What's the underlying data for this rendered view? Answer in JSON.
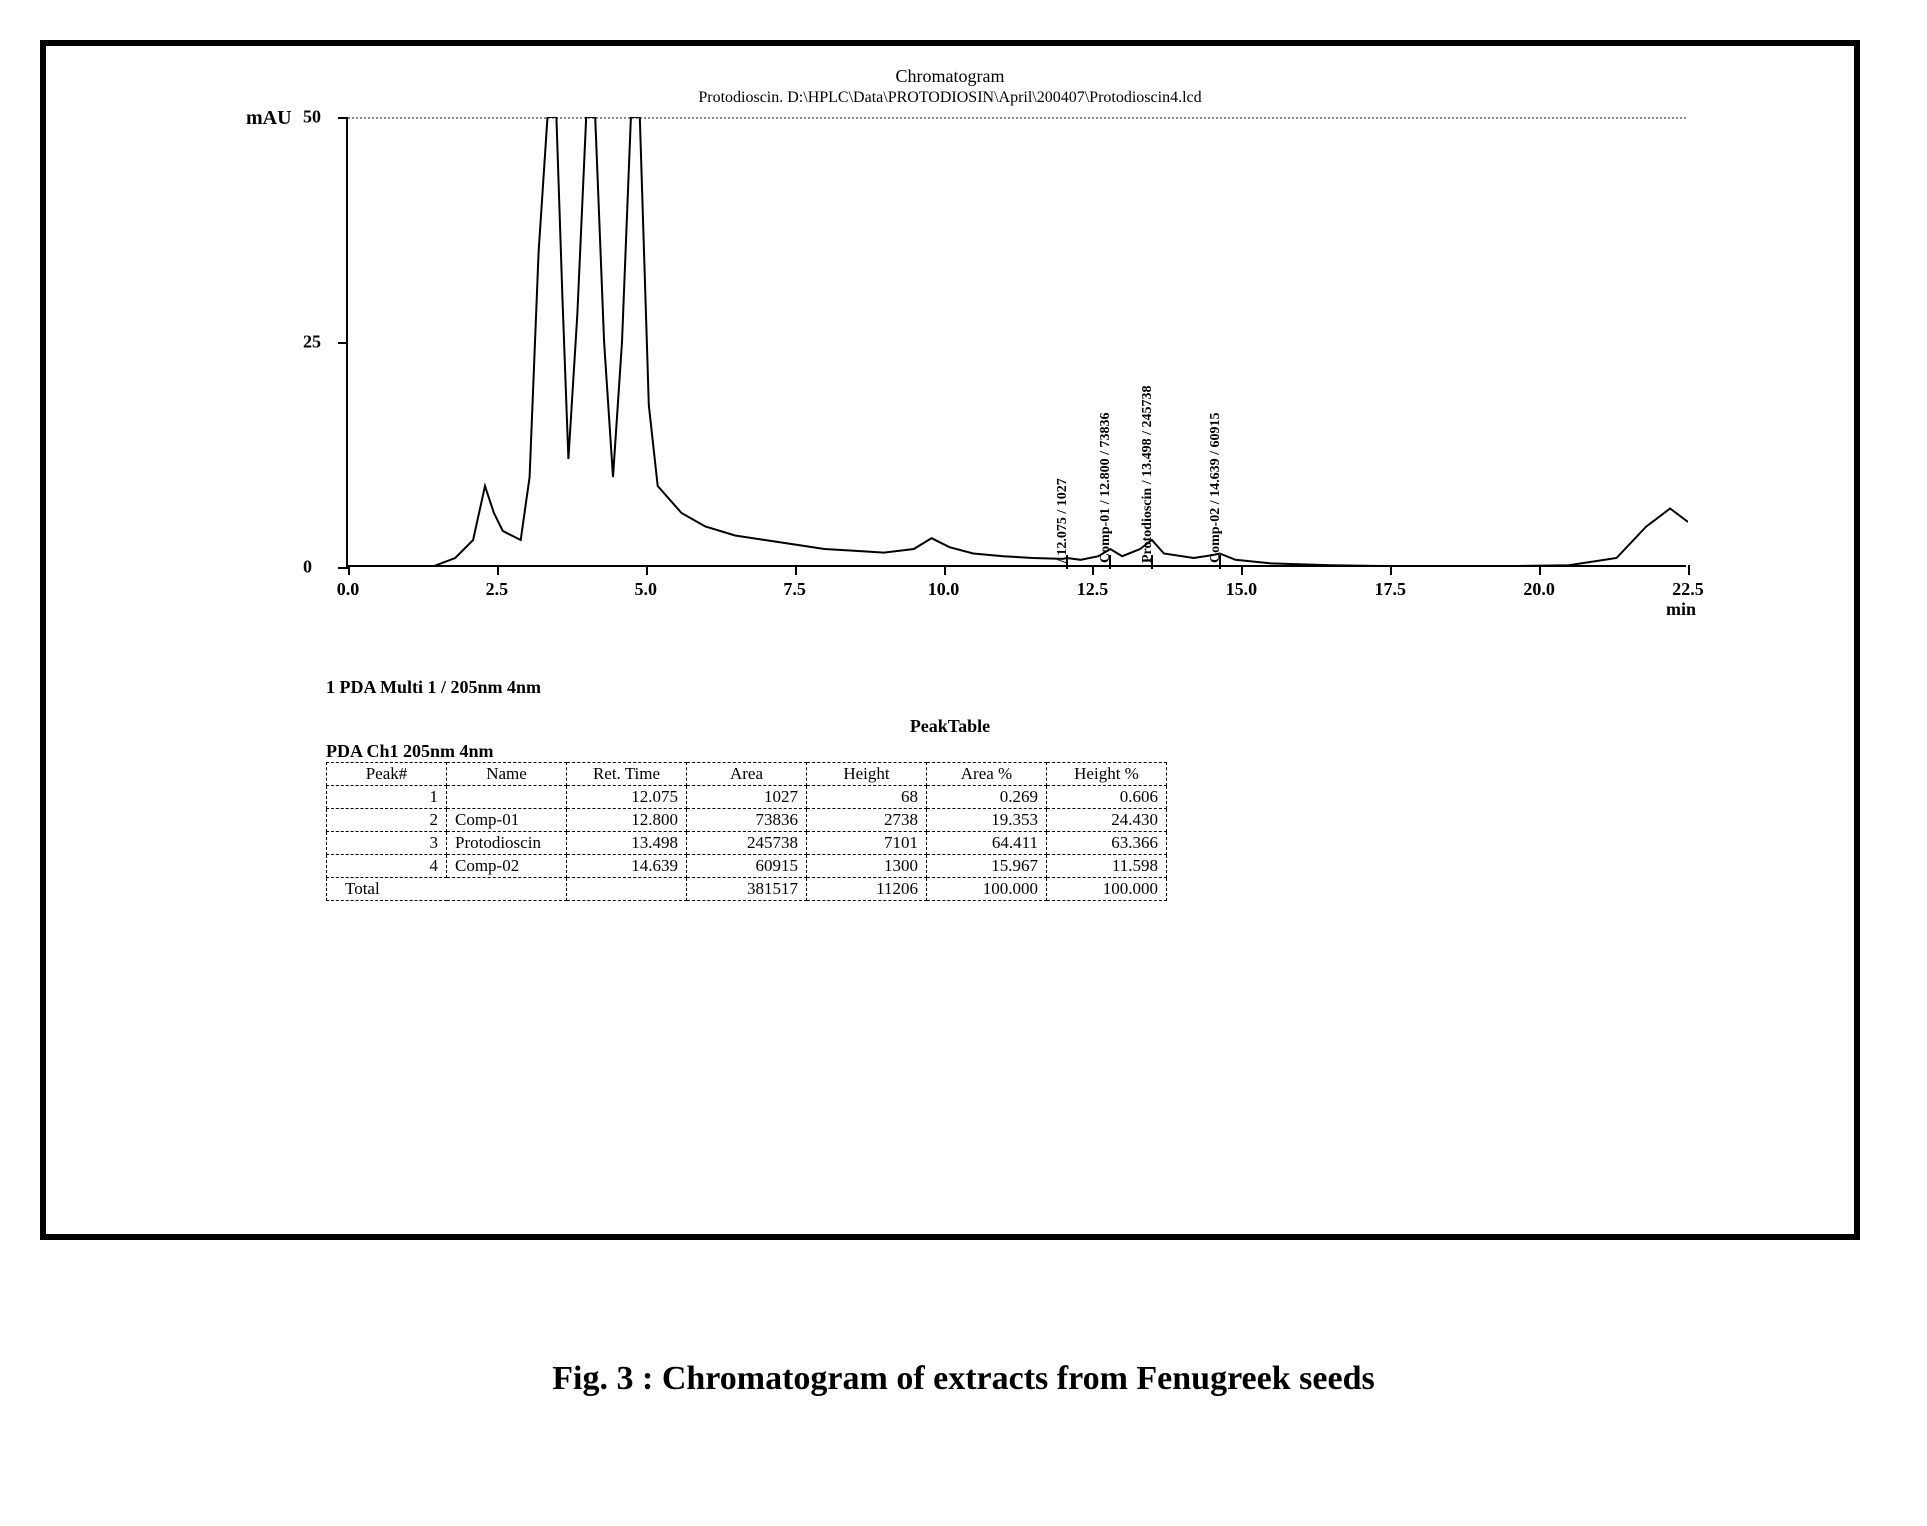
{
  "header": {
    "title": "Chromatogram",
    "subtitle": "Protodioscin. D:\\HPLC\\Data\\PROTODIOSIN\\April\\200407\\Protodioscin4.lcd"
  },
  "chart": {
    "type": "line",
    "y_label": "mAU",
    "x_unit": "min",
    "ylim": [
      0,
      50
    ],
    "xlim": [
      0,
      22.5
    ],
    "yticks": [
      0,
      25,
      50
    ],
    "xticks": [
      0.0,
      2.5,
      5.0,
      7.5,
      10.0,
      12.5,
      15.0,
      17.5,
      20.0,
      22.5
    ],
    "xtick_labels": [
      "0.0",
      "2.5",
      "5.0",
      "7.5",
      "10.0",
      "12.5",
      "15.0",
      "17.5",
      "20.0",
      "22.5"
    ],
    "line_color": "#000000",
    "line_width": 2,
    "background_color": "#ffffff",
    "grid_color": "#888888",
    "font_family": "Times New Roman",
    "tick_fontsize": 18,
    "trace": [
      [
        0.0,
        -1
      ],
      [
        0.3,
        -1
      ],
      [
        0.6,
        0
      ],
      [
        1.0,
        0
      ],
      [
        1.4,
        0
      ],
      [
        1.8,
        1
      ],
      [
        2.1,
        3
      ],
      [
        2.3,
        9
      ],
      [
        2.45,
        6
      ],
      [
        2.6,
        4
      ],
      [
        2.9,
        3
      ],
      [
        3.05,
        10
      ],
      [
        3.2,
        35
      ],
      [
        3.35,
        80
      ],
      [
        3.5,
        55
      ],
      [
        3.6,
        30
      ],
      [
        3.7,
        12
      ],
      [
        3.85,
        28
      ],
      [
        4.0,
        80
      ],
      [
        4.15,
        78
      ],
      [
        4.3,
        25
      ],
      [
        4.45,
        10
      ],
      [
        4.6,
        25
      ],
      [
        4.75,
        80
      ],
      [
        4.9,
        60
      ],
      [
        5.05,
        18
      ],
      [
        5.2,
        9
      ],
      [
        5.6,
        6
      ],
      [
        6.0,
        4.5
      ],
      [
        6.5,
        3.5
      ],
      [
        7.0,
        3
      ],
      [
        7.5,
        2.5
      ],
      [
        8.0,
        2
      ],
      [
        8.5,
        1.8
      ],
      [
        9.0,
        1.6
      ],
      [
        9.5,
        2
      ],
      [
        9.8,
        3.2
      ],
      [
        10.1,
        2.2
      ],
      [
        10.5,
        1.5
      ],
      [
        11.0,
        1.2
      ],
      [
        11.5,
        1
      ],
      [
        12.0,
        0.9
      ],
      [
        12.075,
        1.0
      ],
      [
        12.3,
        0.8
      ],
      [
        12.6,
        1.2
      ],
      [
        12.8,
        2.0
      ],
      [
        13.0,
        1.2
      ],
      [
        13.3,
        2.0
      ],
      [
        13.498,
        3.0
      ],
      [
        13.7,
        1.5
      ],
      [
        14.2,
        1.0
      ],
      [
        14.5,
        1.3
      ],
      [
        14.639,
        1.5
      ],
      [
        14.9,
        0.8
      ],
      [
        15.5,
        0.4
      ],
      [
        16.5,
        0.2
      ],
      [
        17.5,
        0.1
      ],
      [
        18.5,
        0.1
      ],
      [
        19.5,
        0.1
      ],
      [
        20.5,
        0.2
      ],
      [
        21.3,
        1.0
      ],
      [
        21.8,
        4.5
      ],
      [
        22.2,
        6.5
      ],
      [
        22.5,
        5.0
      ]
    ],
    "annotations": [
      {
        "x": 12.075,
        "text": "/ 12.075 / 1027"
      },
      {
        "x": 12.8,
        "text": "Comp-01 / 12.800 / 73836"
      },
      {
        "x": 13.498,
        "text": "Protodioscin / 13.498 / 245738"
      },
      {
        "x": 14.639,
        "text": "Comp-02 / 14.639 / 60915"
      }
    ]
  },
  "channel_label": "1   PDA Multi 1 / 205nm 4nm",
  "peaktable": {
    "title": "PeakTable",
    "channel": "PDA Ch1 205nm 4nm",
    "columns": [
      "Peak#",
      "Name",
      "Ret. Time",
      "Area",
      "Height",
      "Area %",
      "Height %"
    ],
    "rows": [
      [
        "1",
        "",
        "12.075",
        "1027",
        "68",
        "0.269",
        "0.606"
      ],
      [
        "2",
        "Comp-01",
        "12.800",
        "73836",
        "2738",
        "19.353",
        "24.430"
      ],
      [
        "3",
        "Protodioscin",
        "13.498",
        "245738",
        "7101",
        "64.411",
        "63.366"
      ],
      [
        "4",
        "Comp-02",
        "14.639",
        "60915",
        "1300",
        "15.967",
        "11.598"
      ]
    ],
    "total_label": "Total",
    "total": [
      "",
      "",
      "",
      "381517",
      "11206",
      "100.000",
      "100.000"
    ]
  },
  "caption": "Fig. 3 : Chromatogram of extracts from Fenugreek seeds"
}
